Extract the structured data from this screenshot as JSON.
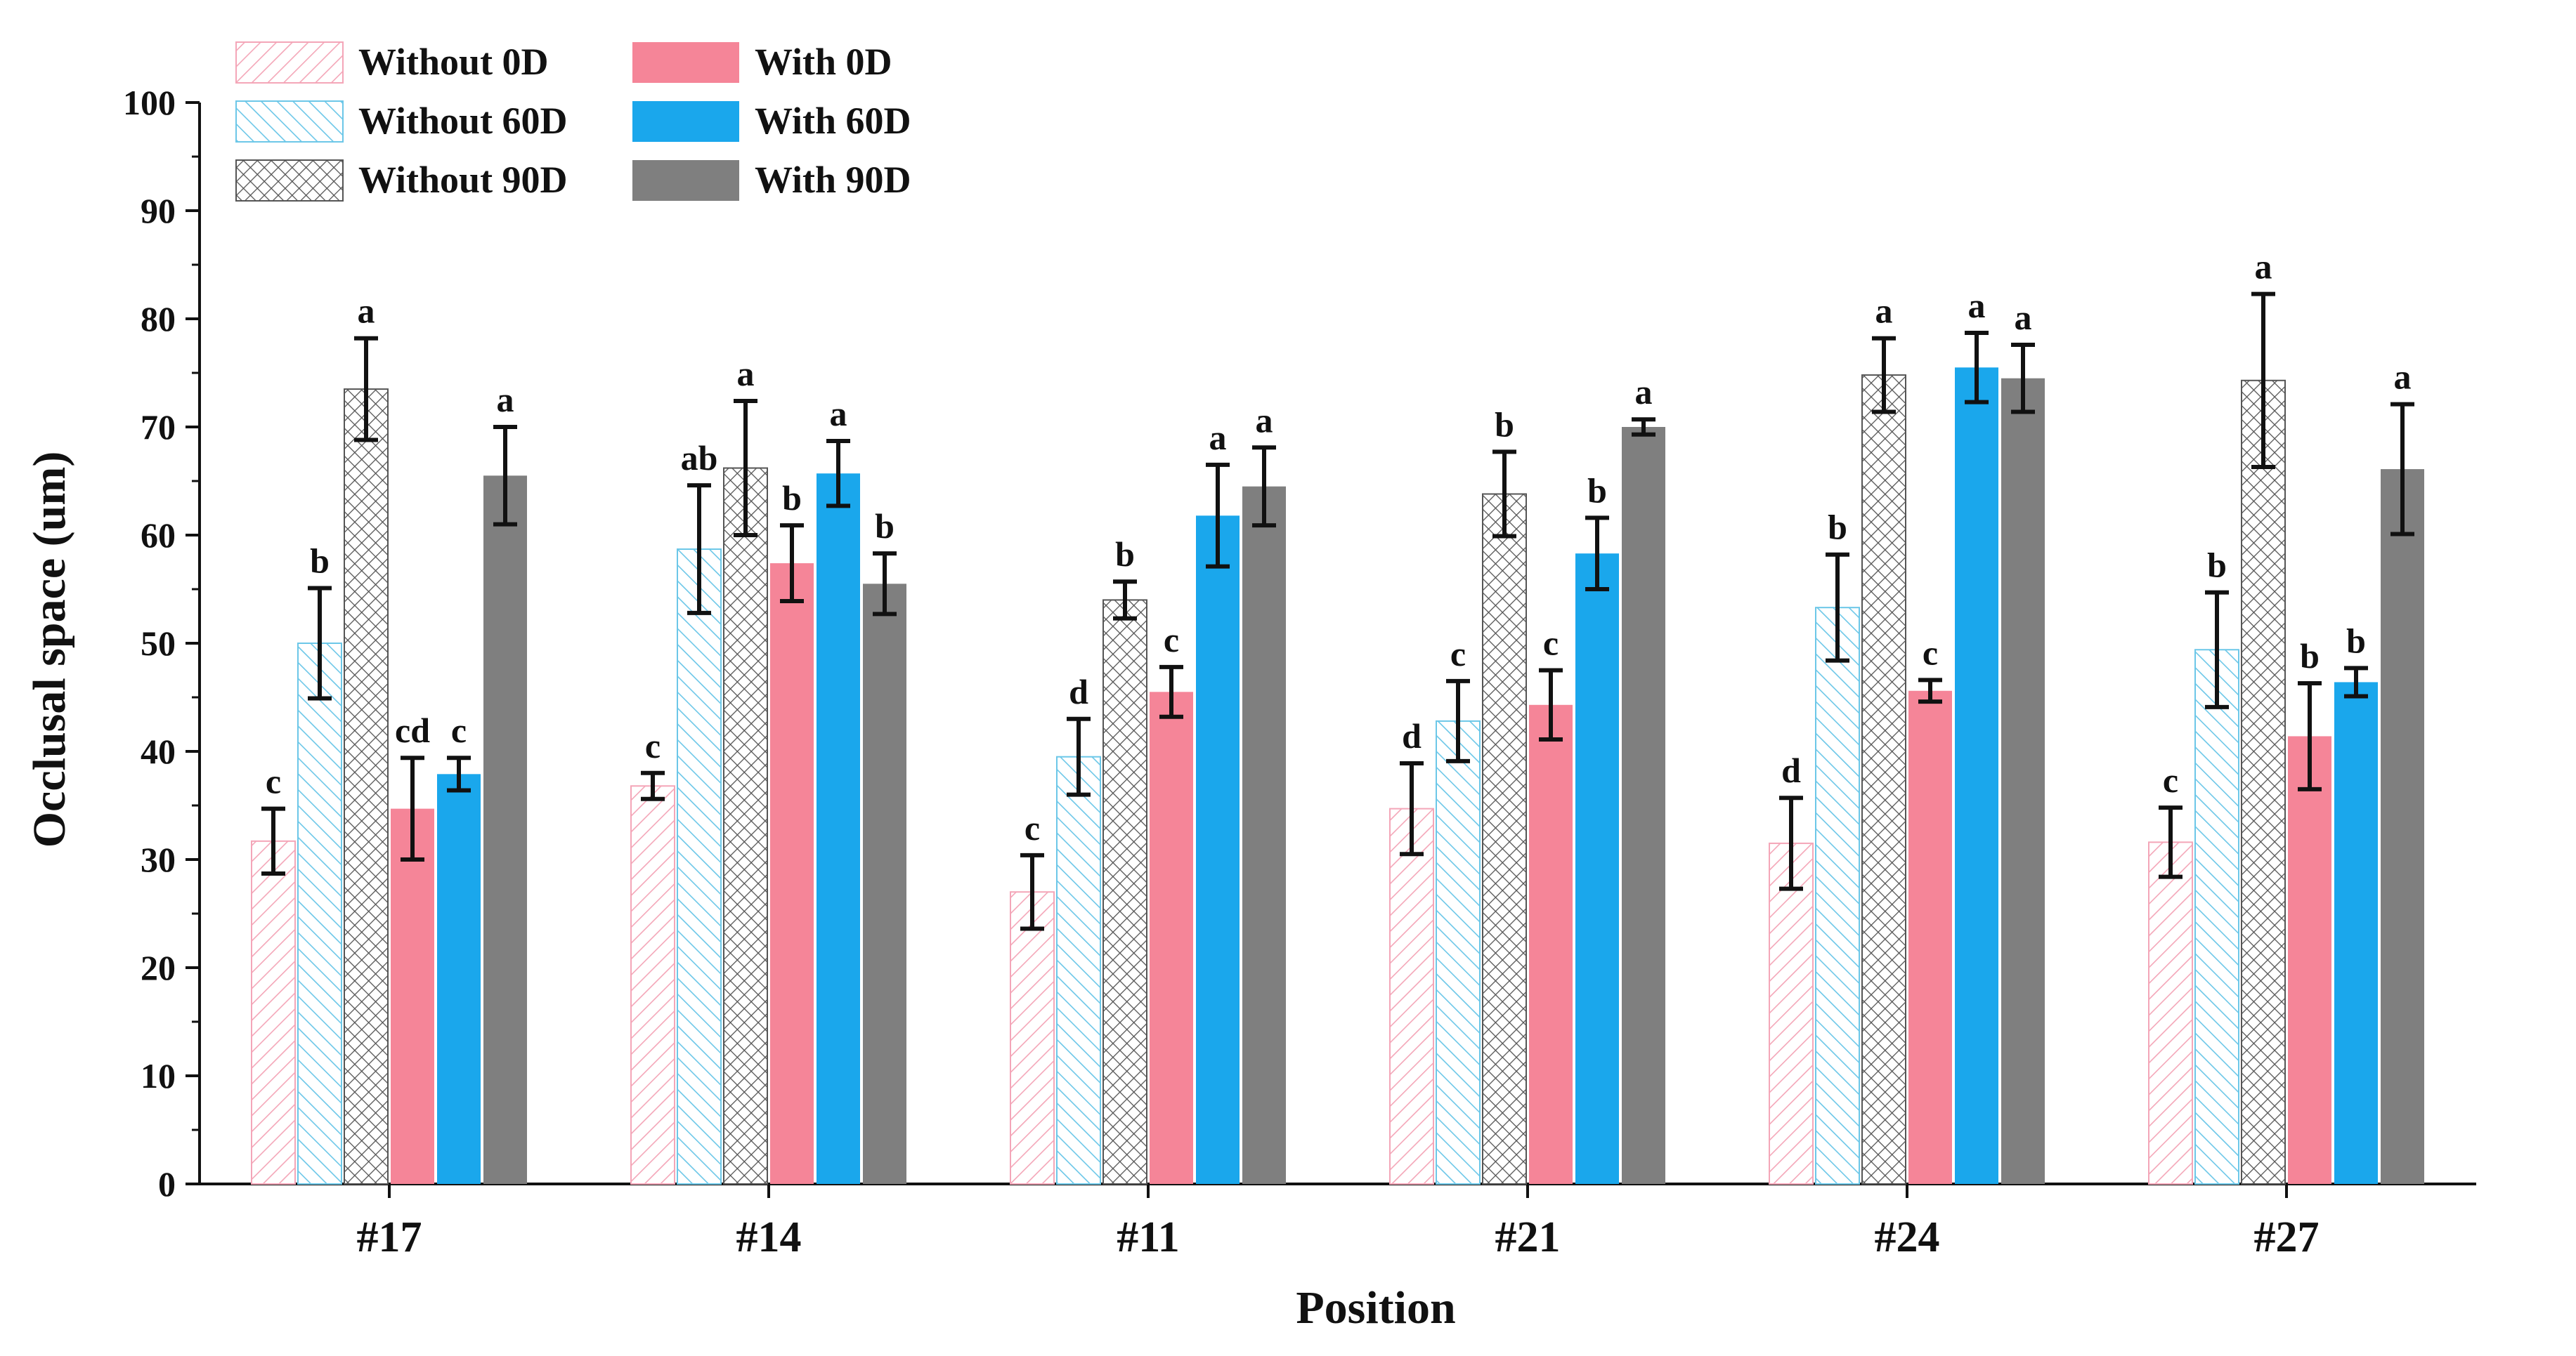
{
  "chart_data": {
    "type": "bar",
    "title": "",
    "xlabel": "Position",
    "ylabel": "Occlusal space (um)",
    "ylim": [
      0,
      100
    ],
    "yticks": [
      "0",
      "10",
      "20",
      "30",
      "40",
      "50",
      "60",
      "70",
      "80",
      "90",
      "100"
    ],
    "categories": [
      "#17",
      "#14",
      "#11",
      "#21",
      "#24",
      "#27"
    ],
    "legend_placement": "top-left",
    "series": [
      {
        "name": "Without 0D",
        "values": [
          31.7,
          36.8,
          27.0,
          34.7,
          31.5,
          31.6
        ],
        "errors": [
          3.0,
          1.2,
          3.4,
          4.2,
          4.2,
          3.2
        ],
        "letters": [
          "c",
          "c",
          "c",
          "d",
          "d",
          "c"
        ],
        "color": "#f4a6b8",
        "pattern": "diagonal-hatch"
      },
      {
        "name": "Without 60D",
        "values": [
          50.0,
          58.7,
          39.5,
          42.8,
          53.3,
          49.4
        ],
        "errors": [
          5.1,
          5.9,
          3.5,
          3.7,
          4.9,
          5.3
        ],
        "letters": [
          "b",
          "ab",
          "d",
          "c",
          "b",
          "b"
        ],
        "color": "#6cc7e8",
        "pattern": "diagonal-hatch-reverse"
      },
      {
        "name": "Without 90D",
        "values": [
          73.5,
          66.2,
          54.0,
          63.8,
          74.8,
          74.3
        ],
        "errors": [
          4.7,
          6.2,
          1.7,
          3.9,
          3.4,
          8.0
        ],
        "letters": [
          "a",
          "a",
          "b",
          "b",
          "a",
          "a"
        ],
        "color": "#555555",
        "pattern": "crosshatch"
      },
      {
        "name": "With 0D",
        "values": [
          34.7,
          57.4,
          45.5,
          44.3,
          45.6,
          41.4
        ],
        "errors": [
          4.7,
          3.5,
          2.3,
          3.2,
          1.0,
          4.9
        ],
        "letters": [
          "cd",
          "b",
          "c",
          "c",
          "c",
          "b"
        ],
        "color": "#f58598",
        "pattern": "solid"
      },
      {
        "name": "With 60D",
        "values": [
          37.9,
          65.7,
          61.8,
          58.3,
          75.5,
          46.4
        ],
        "errors": [
          1.5,
          3.0,
          4.7,
          3.3,
          3.2,
          1.3
        ],
        "letters": [
          "c",
          "a",
          "a",
          "b",
          "a",
          "b"
        ],
        "color": "#1aa7ec",
        "pattern": "solid"
      },
      {
        "name": "With 90D",
        "values": [
          65.5,
          55.5,
          64.5,
          70.0,
          74.5,
          66.1
        ],
        "errors": [
          4.5,
          2.8,
          3.6,
          0.7,
          3.1,
          6.0
        ],
        "letters": [
          "a",
          "b",
          "a",
          "a",
          "a",
          "a"
        ],
        "color": "#7f7f7f",
        "pattern": "solid"
      }
    ]
  }
}
